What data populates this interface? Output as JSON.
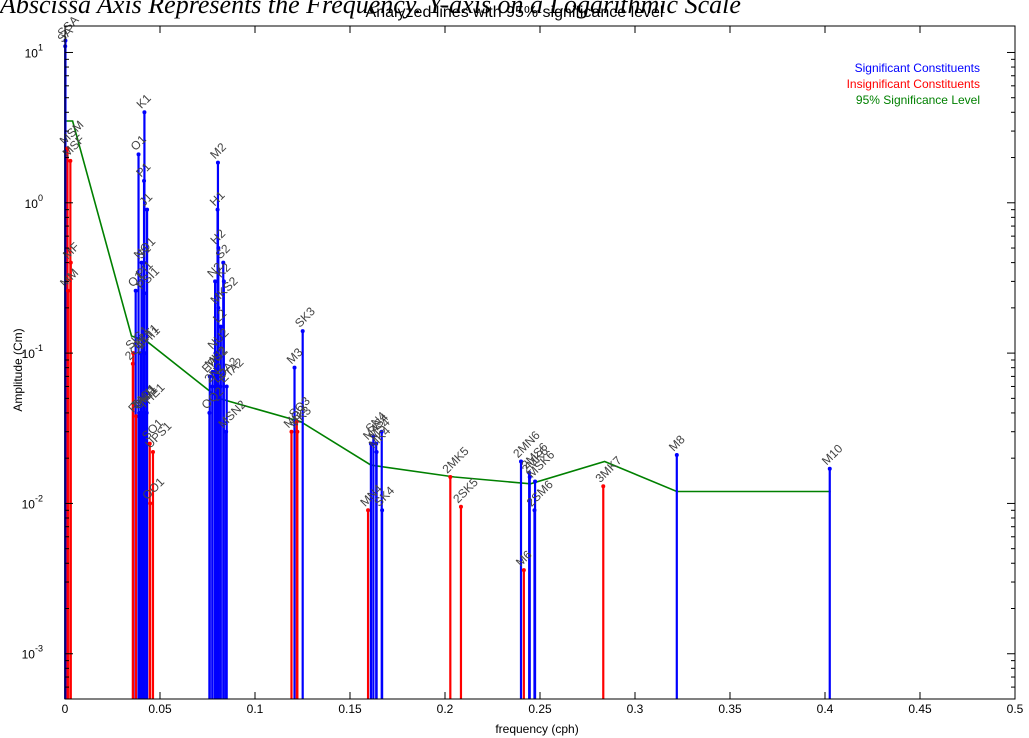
{
  "caption": "Abscissa Axis Represents the Frequency. Y-axis on a Logarithmic Scale",
  "chart_data": {
    "type": "stem",
    "title": "Analyzed lines with 95% significance level",
    "xlabel": "frequency (cph)",
    "ylabel": "Amplitude (Cm)",
    "xlim": [
      0,
      0.5
    ],
    "ylim": [
      0.0005,
      15
    ],
    "yscale": "log",
    "x_ticks": [
      "0",
      "0.05",
      "0.1",
      "0.15",
      "0.2",
      "0.25",
      "0.3",
      "0.35",
      "0.4",
      "0.45",
      "0.5"
    ],
    "y_ticks": [
      {
        "base": "10",
        "exp": "-3",
        "value": 0.001
      },
      {
        "base": "10",
        "exp": "-2",
        "value": 0.01
      },
      {
        "base": "10",
        "exp": "-1",
        "value": 0.1
      },
      {
        "base": "10",
        "exp": "0",
        "value": 1
      },
      {
        "base": "10",
        "exp": "1",
        "value": 10
      }
    ],
    "legend_position": "top-right",
    "legend": [
      {
        "label": "Significant Constituents",
        "color": "#0000ff"
      },
      {
        "label": "Insignificant Constituents",
        "color": "#ff0000"
      },
      {
        "label": "95% Significance Level",
        "color": "#008000"
      }
    ],
    "significance_level": {
      "x": [
        0.0,
        0.004,
        0.035,
        0.043,
        0.081,
        0.124,
        0.161,
        0.205,
        0.245,
        0.284,
        0.322,
        0.403
      ],
      "y": [
        3.5,
        3.5,
        0.13,
        0.12,
        0.05,
        0.035,
        0.018,
        0.015,
        0.0135,
        0.019,
        0.012,
        0.012
      ]
    },
    "constituents": [
      {
        "name": "SSA",
        "x": 0.00023,
        "y": 12.0,
        "significant": true
      },
      {
        "name": "SA",
        "x": 0.00011,
        "y": 11.0,
        "significant": true
      },
      {
        "name": "MSM",
        "x": 0.00131,
        "y": 2.3,
        "significant": false
      },
      {
        "name": "MSF",
        "x": 0.00282,
        "y": 1.9,
        "significant": false
      },
      {
        "name": "MM",
        "x": 0.00151,
        "y": 0.26,
        "significant": false
      },
      {
        "name": "MF",
        "x": 0.00305,
        "y": 0.4,
        "significant": false
      },
      {
        "name": "2Q1",
        "x": 0.0357,
        "y": 0.085,
        "significant": false
      },
      {
        "name": "SIG1",
        "x": 0.0359,
        "y": 0.1,
        "significant": false
      },
      {
        "name": "Q1",
        "x": 0.0372,
        "y": 0.26,
        "significant": true
      },
      {
        "name": "RHO1",
        "x": 0.0374,
        "y": 0.038,
        "significant": false
      },
      {
        "name": "O1",
        "x": 0.0387,
        "y": 2.1,
        "significant": true
      },
      {
        "name": "TAU1",
        "x": 0.039,
        "y": 0.04,
        "significant": true
      },
      {
        "name": "BET1",
        "x": 0.04,
        "y": 0.1,
        "significant": true
      },
      {
        "name": "NO1",
        "x": 0.0403,
        "y": 0.4,
        "significant": true
      },
      {
        "name": "CHI1",
        "x": 0.0405,
        "y": 0.04,
        "significant": true
      },
      {
        "name": "PI1",
        "x": 0.0414,
        "y": 0.3,
        "significant": true
      },
      {
        "name": "P1",
        "x": 0.0416,
        "y": 1.4,
        "significant": true
      },
      {
        "name": "S1",
        "x": 0.0417,
        "y": 0.4,
        "significant": true
      },
      {
        "name": "K1",
        "x": 0.0418,
        "y": 4.0,
        "significant": true
      },
      {
        "name": "PSI1",
        "x": 0.0419,
        "y": 0.25,
        "significant": true
      },
      {
        "name": "PHI1",
        "x": 0.042,
        "y": 0.1,
        "significant": true
      },
      {
        "name": "THE1",
        "x": 0.043,
        "y": 0.04,
        "significant": true
      },
      {
        "name": "J1",
        "x": 0.0432,
        "y": 0.9,
        "significant": true
      },
      {
        "name": "SO1",
        "x": 0.0446,
        "y": 0.025,
        "significant": false
      },
      {
        "name": "OO1",
        "x": 0.0448,
        "y": 0.01,
        "significant": false
      },
      {
        "name": "UPS1",
        "x": 0.0463,
        "y": 0.022,
        "significant": false
      },
      {
        "name": "OQ2",
        "x": 0.076,
        "y": 0.04,
        "significant": true
      },
      {
        "name": "EPS2",
        "x": 0.0762,
        "y": 0.07,
        "significant": true
      },
      {
        "name": "2N2",
        "x": 0.0775,
        "y": 0.06,
        "significant": true
      },
      {
        "name": "MU2",
        "x": 0.0777,
        "y": 0.075,
        "significant": true
      },
      {
        "name": "N2",
        "x": 0.079,
        "y": 0.3,
        "significant": true
      },
      {
        "name": "NU2",
        "x": 0.0792,
        "y": 0.1,
        "significant": true
      },
      {
        "name": "M2",
        "x": 0.0805,
        "y": 1.85,
        "significant": true
      },
      {
        "name": "MKS2",
        "x": 0.0807,
        "y": 0.2,
        "significant": true
      },
      {
        "name": "LDA2",
        "x": 0.0818,
        "y": 0.06,
        "significant": true
      },
      {
        "name": "L2",
        "x": 0.082,
        "y": 0.15,
        "significant": true
      },
      {
        "name": "S2",
        "x": 0.0833,
        "y": 0.4,
        "significant": true
      },
      {
        "name": "K2",
        "x": 0.0836,
        "y": 0.3,
        "significant": true
      },
      {
        "name": "MSN2",
        "x": 0.0848,
        "y": 0.03,
        "significant": true
      },
      {
        "name": "ETA2",
        "x": 0.0851,
        "y": 0.06,
        "significant": true
      },
      {
        "name": "H1",
        "x": 0.0803,
        "y": 0.9,
        "significant": true
      },
      {
        "name": "H2",
        "x": 0.0807,
        "y": 0.5,
        "significant": true
      },
      {
        "name": "MO3",
        "x": 0.1192,
        "y": 0.03,
        "significant": false
      },
      {
        "name": "M3",
        "x": 0.1208,
        "y": 0.08,
        "significant": true
      },
      {
        "name": "SO3",
        "x": 0.122,
        "y": 0.035,
        "significant": false
      },
      {
        "name": "MK3",
        "x": 0.1223,
        "y": 0.03,
        "significant": false
      },
      {
        "name": "SK3",
        "x": 0.1251,
        "y": 0.14,
        "significant": true
      },
      {
        "name": "MN4",
        "x": 0.1595,
        "y": 0.009,
        "significant": false
      },
      {
        "name": "M4",
        "x": 0.161,
        "y": 0.025,
        "significant": true
      },
      {
        "name": "SN4",
        "x": 0.1623,
        "y": 0.028,
        "significant": true
      },
      {
        "name": "MS4",
        "x": 0.1638,
        "y": 0.025,
        "significant": true
      },
      {
        "name": "MK4",
        "x": 0.164,
        "y": 0.022,
        "significant": true
      },
      {
        "name": "S4",
        "x": 0.1667,
        "y": 0.03,
        "significant": true
      },
      {
        "name": "SK4",
        "x": 0.1669,
        "y": 0.009,
        "significant": true
      },
      {
        "name": "2MK5",
        "x": 0.2028,
        "y": 0.015,
        "significant": false
      },
      {
        "name": "2SK5",
        "x": 0.2084,
        "y": 0.0095,
        "significant": false
      },
      {
        "name": "2MN6",
        "x": 0.24,
        "y": 0.019,
        "significant": true
      },
      {
        "name": "M6",
        "x": 0.2415,
        "y": 0.0036,
        "significant": false
      },
      {
        "name": "2MS6",
        "x": 0.2443,
        "y": 0.016,
        "significant": true
      },
      {
        "name": "2MK6",
        "x": 0.2446,
        "y": 0.015,
        "significant": true
      },
      {
        "name": "2SM6",
        "x": 0.2471,
        "y": 0.009,
        "significant": true
      },
      {
        "name": "MSK6",
        "x": 0.2474,
        "y": 0.014,
        "significant": true
      },
      {
        "name": "3MK7",
        "x": 0.2833,
        "y": 0.013,
        "significant": false
      },
      {
        "name": "M8",
        "x": 0.322,
        "y": 0.021,
        "significant": true
      },
      {
        "name": "M10",
        "x": 0.4025,
        "y": 0.017,
        "significant": true
      }
    ]
  }
}
